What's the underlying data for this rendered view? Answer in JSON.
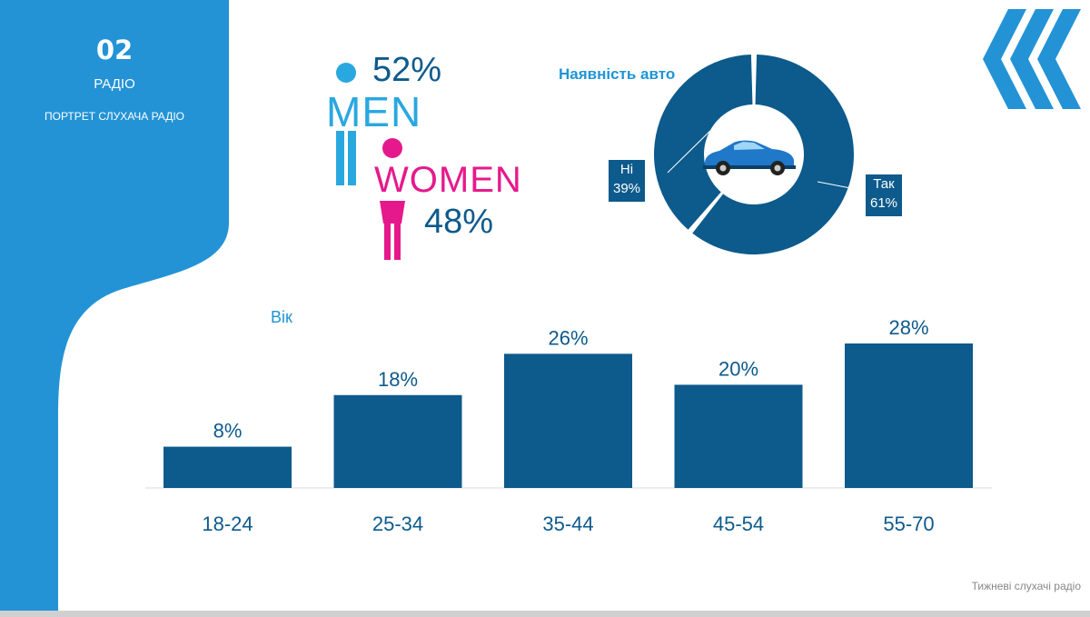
{
  "sidebar": {
    "number": "02",
    "title": "РАДІО",
    "subtitle": "ПОРТРЕТ СЛУХАЧА РАДІО"
  },
  "gender": {
    "men": {
      "label": "MEN",
      "percent": "52%"
    },
    "women": {
      "label": "WOMEN",
      "percent": "48%"
    },
    "men_color": "#29a8e0",
    "women_color": "#e6198c"
  },
  "car": {
    "title": "Наявність авто",
    "yes_label": "Так",
    "yes_value": "61%",
    "no_label": "Ні",
    "no_value": "39%"
  },
  "age": {
    "title": "Вік"
  },
  "footer": {
    "note": "Тижневі слухачі радіо"
  },
  "colors": {
    "accent": "#1f95d5",
    "dark_blue": "#0d5a8c"
  },
  "chart_data": [
    {
      "type": "bar",
      "title": "Вік",
      "categories": [
        "18-24",
        "25-34",
        "35-44",
        "45-54",
        "55-70"
      ],
      "values": [
        8,
        18,
        26,
        20,
        28
      ],
      "data_labels": [
        "8%",
        "18%",
        "26%",
        "20%",
        "28%"
      ],
      "ylim": [
        0,
        28
      ],
      "grid": false
    },
    {
      "type": "pie",
      "title": "Наявність авто",
      "categories": [
        "Так",
        "Ні"
      ],
      "values": [
        61,
        39
      ],
      "data_labels": [
        "61%",
        "39%"
      ]
    }
  ]
}
